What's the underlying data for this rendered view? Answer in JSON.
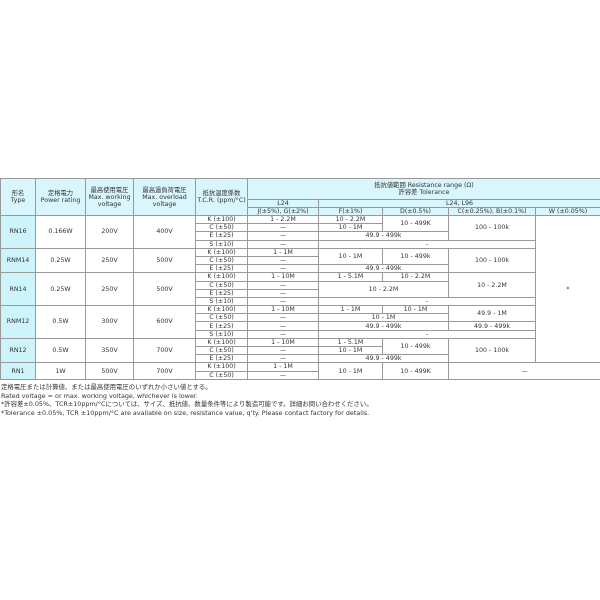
{
  "headers": {
    "type": [
      "形名",
      "Type"
    ],
    "power": [
      "定格電力",
      "Power rating"
    ],
    "working": [
      "最高使用電圧",
      "Max. working",
      "voltage"
    ],
    "overload": [
      "最高過負荷電圧",
      "Max. overload",
      "voltage"
    ],
    "tcr": [
      "抵抗温度係数",
      "T.C.R. (ppm/°C)"
    ],
    "range": [
      "抵抗値範囲 Resistance range (Ω)",
      "許容差 Tolerance"
    ],
    "series_l24": "L24",
    "series_l24_l96": "L24, L96",
    "tolerances": [
      "J(±5%), G(±2%)",
      "F(±1%)",
      "D(±0.5%)",
      "C(±0.25%), B(±0.1%)",
      "W (±0.05%)"
    ]
  },
  "w_column_note": "*",
  "groups": [
    {
      "type": "RN16",
      "power": "0.166W",
      "working": "200V",
      "overload": "400V",
      "rows": [
        {
          "tcr": "K (±100)",
          "cells": [
            {
              "t": "1 - 2.2M"
            },
            {
              "t": "10 - 2.2M"
            },
            {
              "t": "10 - 499K",
              "rs": 2
            },
            {
              "t": "100 - 100k",
              "rs": 3
            }
          ]
        },
        {
          "tcr": "C (±50)",
          "cells": [
            {
              "t": "—"
            },
            {
              "t": "10 - 1M"
            }
          ]
        },
        {
          "tcr": "E (±25)",
          "cells": [
            {
              "t": "—"
            },
            {
              "t": "49.9 - 499k",
              "cs": 2
            }
          ]
        },
        {
          "tcr": "S (±10)",
          "cells": [
            {
              "t": "—"
            },
            {
              "t": "-",
              "cs": 3
            }
          ]
        }
      ]
    },
    {
      "type": "RNM14",
      "power": "0.25W",
      "working": "250V",
      "overload": "500V",
      "rows": [
        {
          "tcr": "K (±100)",
          "cells": [
            {
              "t": "1 - 1M"
            },
            {
              "t": "10 - 1M",
              "rs": 2
            },
            {
              "t": "10 - 499k",
              "rs": 2
            },
            {
              "t": "100 - 100k",
              "rs": 3
            }
          ]
        },
        {
          "tcr": "C (±50)",
          "cells": [
            {
              "t": "—"
            }
          ]
        },
        {
          "tcr": "E (±25)",
          "cells": [
            {
              "t": "—"
            },
            {
              "t": "49.9 - 499k",
              "cs": 2
            }
          ]
        }
      ]
    },
    {
      "type": "RN14",
      "power": "0.25W",
      "working": "250V",
      "overload": "500V",
      "rows": [
        {
          "tcr": "K (±100)",
          "cells": [
            {
              "t": "1 - 10M"
            },
            {
              "t": "1 - 5.1M"
            },
            {
              "t": "10 - 2.2M"
            },
            {
              "t": "10 - 2.2M",
              "rs": 3
            }
          ]
        },
        {
          "tcr": "C (±50)",
          "cells": [
            {
              "t": "—"
            },
            {
              "t": "10 - 2.2M",
              "cs": 2,
              "rs": 2
            }
          ]
        },
        {
          "tcr": "E (±25)",
          "cells": [
            {
              "t": "—"
            }
          ]
        },
        {
          "tcr": "S (±10)",
          "cells": [
            {
              "t": "—"
            },
            {
              "t": "-",
              "cs": 3
            }
          ]
        }
      ]
    },
    {
      "type": "RNM12",
      "power": "0.5W",
      "working": "300V",
      "overload": "600V",
      "rows": [
        {
          "tcr": "K (±100)",
          "cells": [
            {
              "t": "1 - 10M"
            },
            {
              "t": "1 - 1M"
            },
            {
              "t": "10 - 1M"
            },
            {
              "t": "49.9 - 1M",
              "rs": 2
            }
          ]
        },
        {
          "tcr": "C (±50)",
          "cells": [
            {
              "t": "—"
            },
            {
              "t": "10 - 1M",
              "cs": 2
            }
          ]
        },
        {
          "tcr": "E (±25)",
          "cells": [
            {
              "t": "—"
            },
            {
              "t": "49.9 - 499k",
              "cs": 2
            },
            {
              "t": "49.9 - 499k"
            }
          ]
        },
        {
          "tcr": "S (±10)",
          "cells": [
            {
              "t": "—"
            },
            {
              "t": "-",
              "cs": 3
            }
          ]
        }
      ]
    },
    {
      "type": "RN12",
      "power": "0.5W",
      "working": "350V",
      "overload": "700V",
      "rows": [
        {
          "tcr": "K (±100)",
          "cells": [
            {
              "t": "1 - 10M"
            },
            {
              "t": "1 - 5.1M"
            },
            {
              "t": "10 - 499k",
              "rs": 2
            },
            {
              "t": "100 - 100k",
              "rs": 3
            }
          ]
        },
        {
          "tcr": "C (±50)",
          "cells": [
            {
              "t": "—"
            },
            {
              "t": "10 - 1M"
            }
          ]
        },
        {
          "tcr": "E (±25)",
          "cells": [
            {
              "t": "—"
            },
            {
              "t": "49.9 - 499k",
              "cs": 2
            }
          ]
        }
      ]
    },
    {
      "type": "RN1",
      "power": "1W",
      "working": "500V",
      "overload": "700V",
      "rows": [
        {
          "tcr": "K (±100)",
          "cells": [
            {
              "t": "1 - 1M"
            },
            {
              "t": "10 - 1M",
              "rs": 2
            },
            {
              "t": "10 - 499K",
              "rs": 2
            },
            {
              "t": "—",
              "rs": 2,
              "cs": 2
            }
          ]
        },
        {
          "tcr": "C (±50)",
          "cells": [
            {
              "t": "—"
            }
          ]
        }
      ]
    }
  ],
  "notes": [
    "定格電圧または計算値、または最高使用電圧のいずれか小さい値とする。",
    "Rated voltage = or max. working voltage, whichever is lower.",
    "*許容差±0.05%、TCR±10ppm/°Cについては、サイズ、抵抗値、数量条件等により製造可能です。詳細お問い合わせください。",
    "*Tolerance ±0.05%, TCR ±10ppm/°C are available on size, resistance value, q'ty. Please contact factory for details."
  ]
}
